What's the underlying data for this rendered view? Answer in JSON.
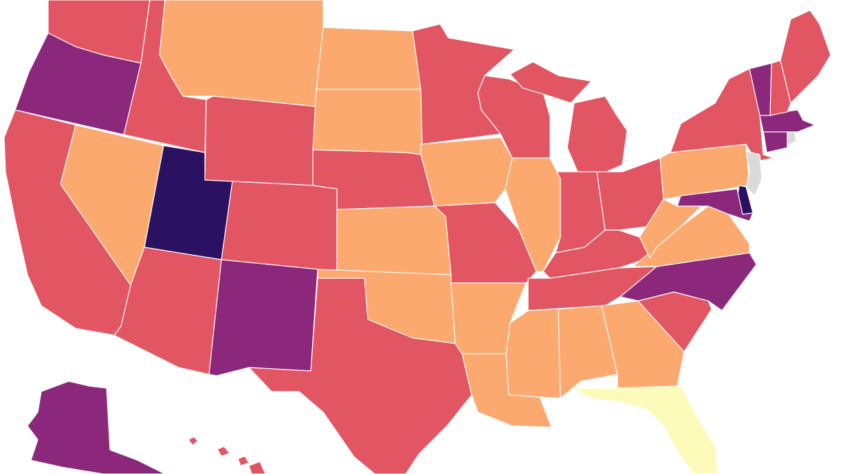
{
  "map": {
    "region": "United States",
    "palette": {
      "lightest": "#fdfbb9",
      "light": "#fca96f",
      "mid": "#e25563",
      "dark": "#8b287b",
      "darkest": "#2b1162",
      "no_data": "#dadada"
    },
    "states": [
      {
        "id": "WA",
        "category": "mid"
      },
      {
        "id": "OR",
        "category": "dark"
      },
      {
        "id": "CA",
        "category": "mid"
      },
      {
        "id": "ID",
        "category": "mid"
      },
      {
        "id": "NV",
        "category": "light"
      },
      {
        "id": "UT",
        "category": "darkest"
      },
      {
        "id": "AZ",
        "category": "mid"
      },
      {
        "id": "MT",
        "category": "light"
      },
      {
        "id": "WY",
        "category": "mid"
      },
      {
        "id": "CO",
        "category": "mid"
      },
      {
        "id": "NM",
        "category": "dark"
      },
      {
        "id": "ND",
        "category": "light"
      },
      {
        "id": "SD",
        "category": "light"
      },
      {
        "id": "NE",
        "category": "mid"
      },
      {
        "id": "KS",
        "category": "light"
      },
      {
        "id": "OK",
        "category": "light"
      },
      {
        "id": "TX",
        "category": "mid"
      },
      {
        "id": "MN",
        "category": "mid"
      },
      {
        "id": "IA",
        "category": "light"
      },
      {
        "id": "MO",
        "category": "mid"
      },
      {
        "id": "AR",
        "category": "light"
      },
      {
        "id": "LA",
        "category": "light"
      },
      {
        "id": "WI",
        "category": "mid"
      },
      {
        "id": "IL",
        "category": "light"
      },
      {
        "id": "MI",
        "category": "mid"
      },
      {
        "id": "IN",
        "category": "mid"
      },
      {
        "id": "OH",
        "category": "mid"
      },
      {
        "id": "KY",
        "category": "mid"
      },
      {
        "id": "TN",
        "category": "mid"
      },
      {
        "id": "MS",
        "category": "light"
      },
      {
        "id": "AL",
        "category": "light"
      },
      {
        "id": "GA",
        "category": "light"
      },
      {
        "id": "FL",
        "category": "lightest"
      },
      {
        "id": "SC",
        "category": "mid"
      },
      {
        "id": "NC",
        "category": "dark"
      },
      {
        "id": "VA",
        "category": "light"
      },
      {
        "id": "WV",
        "category": "light"
      },
      {
        "id": "PA",
        "category": "light"
      },
      {
        "id": "NY",
        "category": "mid"
      },
      {
        "id": "NJ",
        "category": "no_data"
      },
      {
        "id": "DE",
        "category": "darkest"
      },
      {
        "id": "MD",
        "category": "dark"
      },
      {
        "id": "CT",
        "category": "dark"
      },
      {
        "id": "RI",
        "category": "no_data"
      },
      {
        "id": "MA",
        "category": "dark"
      },
      {
        "id": "VT",
        "category": "dark"
      },
      {
        "id": "NH",
        "category": "mid"
      },
      {
        "id": "ME",
        "category": "mid"
      },
      {
        "id": "AK",
        "category": "dark"
      },
      {
        "id": "HI",
        "category": "mid"
      }
    ]
  }
}
